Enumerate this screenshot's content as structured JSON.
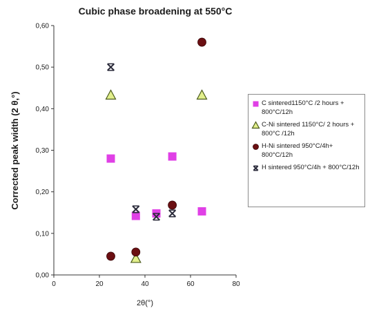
{
  "chart_data": {
    "type": "scatter",
    "title": "Cubic phase broadening at 550°C",
    "xlabel": "2θ(°)",
    "ylabel": "Corrected peak width (2 θ,°)",
    "xlim": [
      0,
      80
    ],
    "ylim": [
      0,
      0.6
    ],
    "x_ticks": [
      "0",
      "20",
      "40",
      "60",
      "80"
    ],
    "y_ticks": [
      "0,00",
      "0,10",
      "0,20",
      "0,30",
      "0,40",
      "0,50",
      "0,60"
    ],
    "grid": false,
    "legend_position": "right",
    "series": [
      {
        "name": "C sintered1150°C /2 hours + 800°C/12h",
        "marker": "square",
        "color": "#e040e6",
        "x": [
          25,
          36,
          45,
          52,
          65
        ],
        "y": [
          0.28,
          0.142,
          0.148,
          0.285,
          0.153
        ]
      },
      {
        "name": "C-Ni sintered 1150°C/ 2 hours + 800°C /12h",
        "marker": "triangle",
        "color": "#e2ef8c",
        "x": [
          25,
          36,
          65
        ],
        "y": [
          0.433,
          0.04,
          0.433
        ]
      },
      {
        "name": "H-Ni sintered 950°C/4h+ 800°C/12h",
        "marker": "circle",
        "color": "#6b0f12",
        "x": [
          25,
          36,
          52,
          65
        ],
        "y": [
          0.045,
          0.055,
          0.168,
          0.56
        ]
      },
      {
        "name": "H sintered 950°C/4h + 800°C/12h",
        "marker": "star",
        "color": "#2a2a3a",
        "x": [
          25,
          36,
          45,
          52
        ],
        "y": [
          0.5,
          0.158,
          0.14,
          0.148
        ]
      }
    ]
  }
}
